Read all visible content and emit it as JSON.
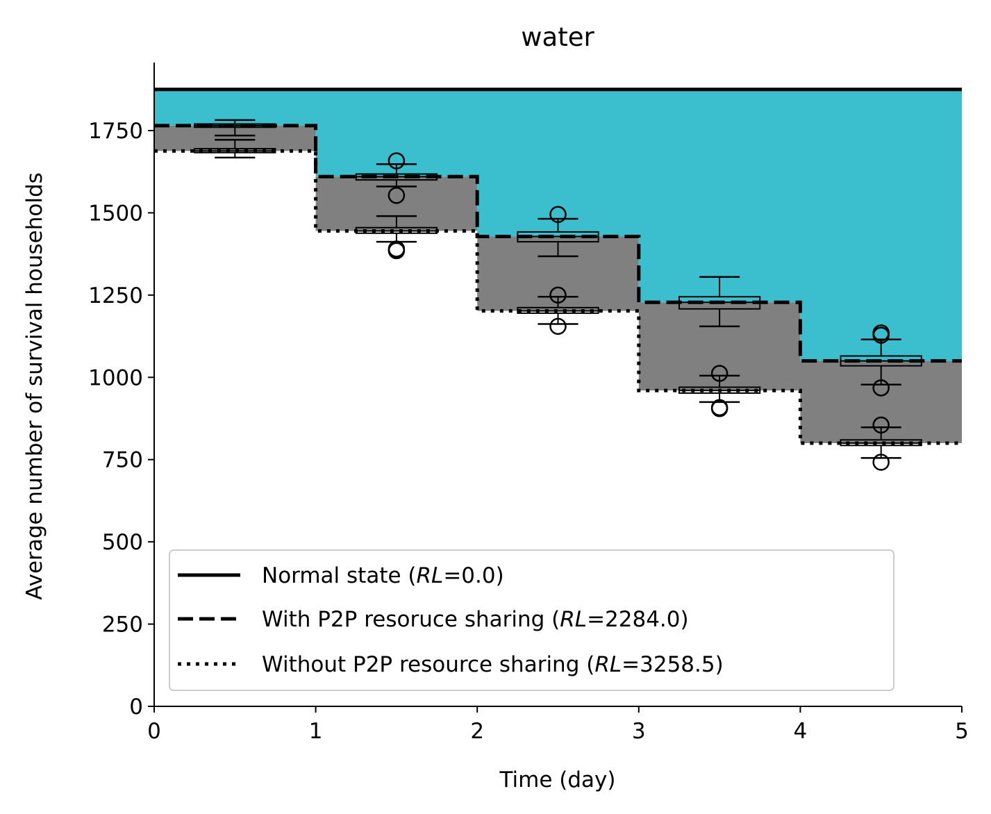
{
  "chart_data": {
    "type": "line",
    "title": "water",
    "xlabel": "Time (day)",
    "ylabel": "Average number of survival households",
    "xlim": [
      0,
      5
    ],
    "ylim": [
      0,
      1950
    ],
    "xticks": [
      0,
      1,
      2,
      3,
      4,
      5
    ],
    "yticks": [
      0,
      250,
      500,
      750,
      1000,
      1250,
      1500,
      1750
    ],
    "grid": false,
    "legend_position": "lower-left",
    "colors": {
      "loss_with_p2p": "#3bbfce",
      "p2p_gain": "#808080",
      "lines": "#000000"
    },
    "series": [
      {
        "legend_prefix": "Normal state (",
        "legend_rl": "RL",
        "legend_suffix": "=0.0)",
        "style": "solid",
        "x": [
          0,
          1,
          2,
          3,
          4,
          5
        ],
        "y": [
          1875,
          1875,
          1875,
          1875,
          1875,
          1875
        ]
      },
      {
        "legend_prefix": "With P2P resoruce sharing (",
        "legend_rl": "RL",
        "legend_suffix": "=2284.0)",
        "style": "dashed",
        "x": [
          0,
          1,
          2,
          3,
          4,
          5
        ],
        "y": [
          1765,
          1610,
          1428,
          1228,
          1050,
          1050
        ]
      },
      {
        "legend_prefix": "Without P2P resource sharing (",
        "legend_rl": "RL",
        "legend_suffix": "=3258.5)",
        "style": "dotted",
        "x": [
          0,
          1,
          2,
          3,
          4,
          5
        ],
        "y": [
          1688,
          1445,
          1202,
          960,
          800,
          800
        ]
      }
    ],
    "boxplots": [
      {
        "x": 0.5,
        "group": "with",
        "q1": 1760,
        "median": 1765,
        "q3": 1770,
        "whislo": 1735,
        "whishi": 1782,
        "fliers": []
      },
      {
        "x": 0.5,
        "group": "without",
        "q1": 1683,
        "median": 1688,
        "q3": 1695,
        "whislo": 1668,
        "whishi": 1722,
        "fliers": []
      },
      {
        "x": 1.5,
        "group": "with",
        "q1": 1600,
        "median": 1610,
        "q3": 1618,
        "whislo": 1580,
        "whishi": 1648,
        "fliers": [
          1658,
          1553
        ]
      },
      {
        "x": 1.5,
        "group": "without",
        "q1": 1438,
        "median": 1445,
        "q3": 1455,
        "whislo": 1412,
        "whishi": 1490,
        "fliers": [
          1390,
          1385
        ]
      },
      {
        "x": 2.5,
        "group": "with",
        "q1": 1412,
        "median": 1428,
        "q3": 1442,
        "whislo": 1368,
        "whishi": 1482,
        "fliers": [
          1495
        ]
      },
      {
        "x": 2.5,
        "group": "without",
        "q1": 1195,
        "median": 1202,
        "q3": 1212,
        "whislo": 1162,
        "whishi": 1245,
        "fliers": [
          1250,
          1155
        ]
      },
      {
        "x": 3.5,
        "group": "with",
        "q1": 1208,
        "median": 1228,
        "q3": 1245,
        "whislo": 1155,
        "whishi": 1305,
        "fliers": []
      },
      {
        "x": 3.5,
        "group": "without",
        "q1": 952,
        "median": 960,
        "q3": 970,
        "whislo": 925,
        "whishi": 1005,
        "fliers": [
          1012,
          908,
          905
        ]
      },
      {
        "x": 4.5,
        "group": "with",
        "q1": 1035,
        "median": 1050,
        "q3": 1065,
        "whislo": 978,
        "whishi": 1115,
        "fliers": [
          1135,
          1128,
          968
        ]
      },
      {
        "x": 4.5,
        "group": "without",
        "q1": 793,
        "median": 800,
        "q3": 810,
        "whislo": 755,
        "whishi": 848,
        "fliers": [
          855,
          742
        ]
      }
    ]
  }
}
